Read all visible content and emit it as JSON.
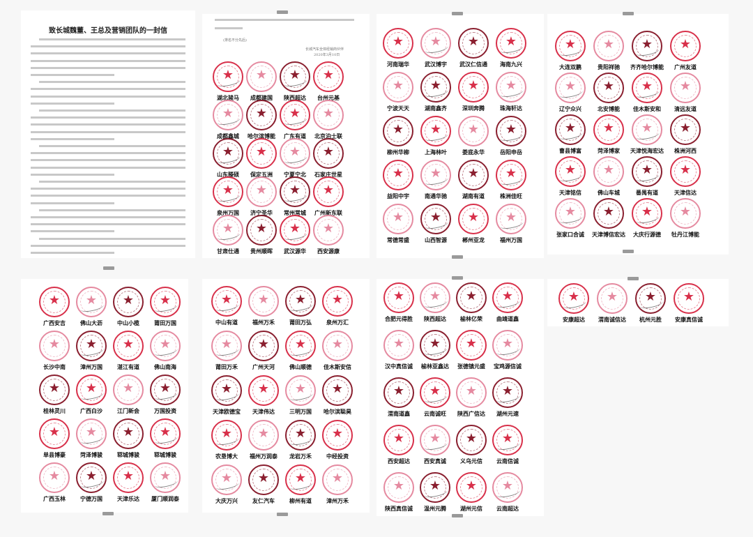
{
  "letter": {
    "title": "致长城魏董、王总及营销团队的一封信"
  },
  "signoff": {
    "note": "(排名不分先后)",
    "signer": "长城汽车全体经销商伙伴",
    "date": "2020年3月10日"
  },
  "pages": [
    {
      "seals": [
        "湖北骏马",
        "成都建国",
        "陕西超达",
        "台州元基",
        "成都鑫城",
        "哈尔滨博能",
        "广东有道",
        "北京泊士联",
        "山东滕硕",
        "保定五洲",
        "宁夏宁北",
        "石家庄世星",
        "泉州万国",
        "济宁圣华",
        "常州常城",
        "广州新东联",
        "甘肃仕通",
        "贵州顺晖",
        "武汉源华",
        "西安源康"
      ]
    },
    {
      "seals": [
        "河南瑞华",
        "武汉博宇",
        "武汉仁信通",
        "海南九兴",
        "宁波天天",
        "湖南鑫齐",
        "深圳奔腾",
        "珠海轩达",
        "柳州华柳",
        "上海林叶",
        "娄底永华",
        "岳阳申岳",
        "益阳中宇",
        "南通华驰",
        "湖南有道",
        "株洲佳旺",
        "常德常盛",
        "山西智源",
        "郴州亚龙",
        "福州万国"
      ]
    },
    {
      "seals": [
        "大连双鹏",
        "贵阳祥驰",
        "齐齐哈尔博能",
        "广州友道",
        "辽宁众兴",
        "北安博能",
        "佳木斯安和",
        "清远友道",
        "曹县博富",
        "菏泽博家",
        "天津悦海宏达",
        "株洲河西",
        "天津铭信",
        "佛山车城",
        "番禺有道",
        "天津信达",
        "张家口合诚",
        "天津博信宏达",
        "大庆行源德",
        "牡丹江博能"
      ]
    },
    {
      "seals": [
        "广西安吉",
        "佛山大沥",
        "中山小榄",
        "莆田万国",
        "长沙中南",
        "漳州万国",
        "湛江有道",
        "佛山南海",
        "桂林灵川",
        "广西白沙",
        "江门新会",
        "万国投资",
        "单县博豪",
        "菏泽博骏",
        "郓城博骏",
        "郓城博骏",
        "广西玉林",
        "宁德万国",
        "天津乐达",
        "厦门顺润泰"
      ]
    },
    {
      "seals": [
        "中山有道",
        "福州万禾",
        "莆田万弘",
        "泉州万汇",
        "莆田万禾",
        "广州天河",
        "佛山顺德",
        "佳木斯安信",
        "天津欧德宝",
        "天津伟达",
        "三明万国",
        "哈尔滨聪昊",
        "农垦博大",
        "福州万润泰",
        "龙岩万禾",
        "中经投资",
        "大庆万兴",
        "友仁汽车",
        "柳州有道",
        "漳州万禾"
      ]
    },
    {
      "seals": [
        "合肥元得胜",
        "陕西超达",
        "榆林亿荣",
        "曲靖道鑫",
        "汉中真信诚",
        "榆林亚鑫达",
        "张德镇元盛",
        "宝鸡源信诚",
        "渭南道鑫",
        "云南诚旺",
        "陕西广信达",
        "湖州元速",
        "西安超达",
        "西安真诚",
        "义乌元信",
        "云南信诚",
        "陕西真信诚",
        "温州元腾",
        "湖州元信",
        "云南超达"
      ]
    },
    {
      "seals": [
        "安康超达",
        "渭南诚信达",
        "杭州元胜",
        "安康真信诚"
      ]
    }
  ],
  "colors": {
    "seal_red": "#d8304a",
    "seal_pink": "#e58aa0",
    "seal_dark": "#8a1f2f"
  }
}
